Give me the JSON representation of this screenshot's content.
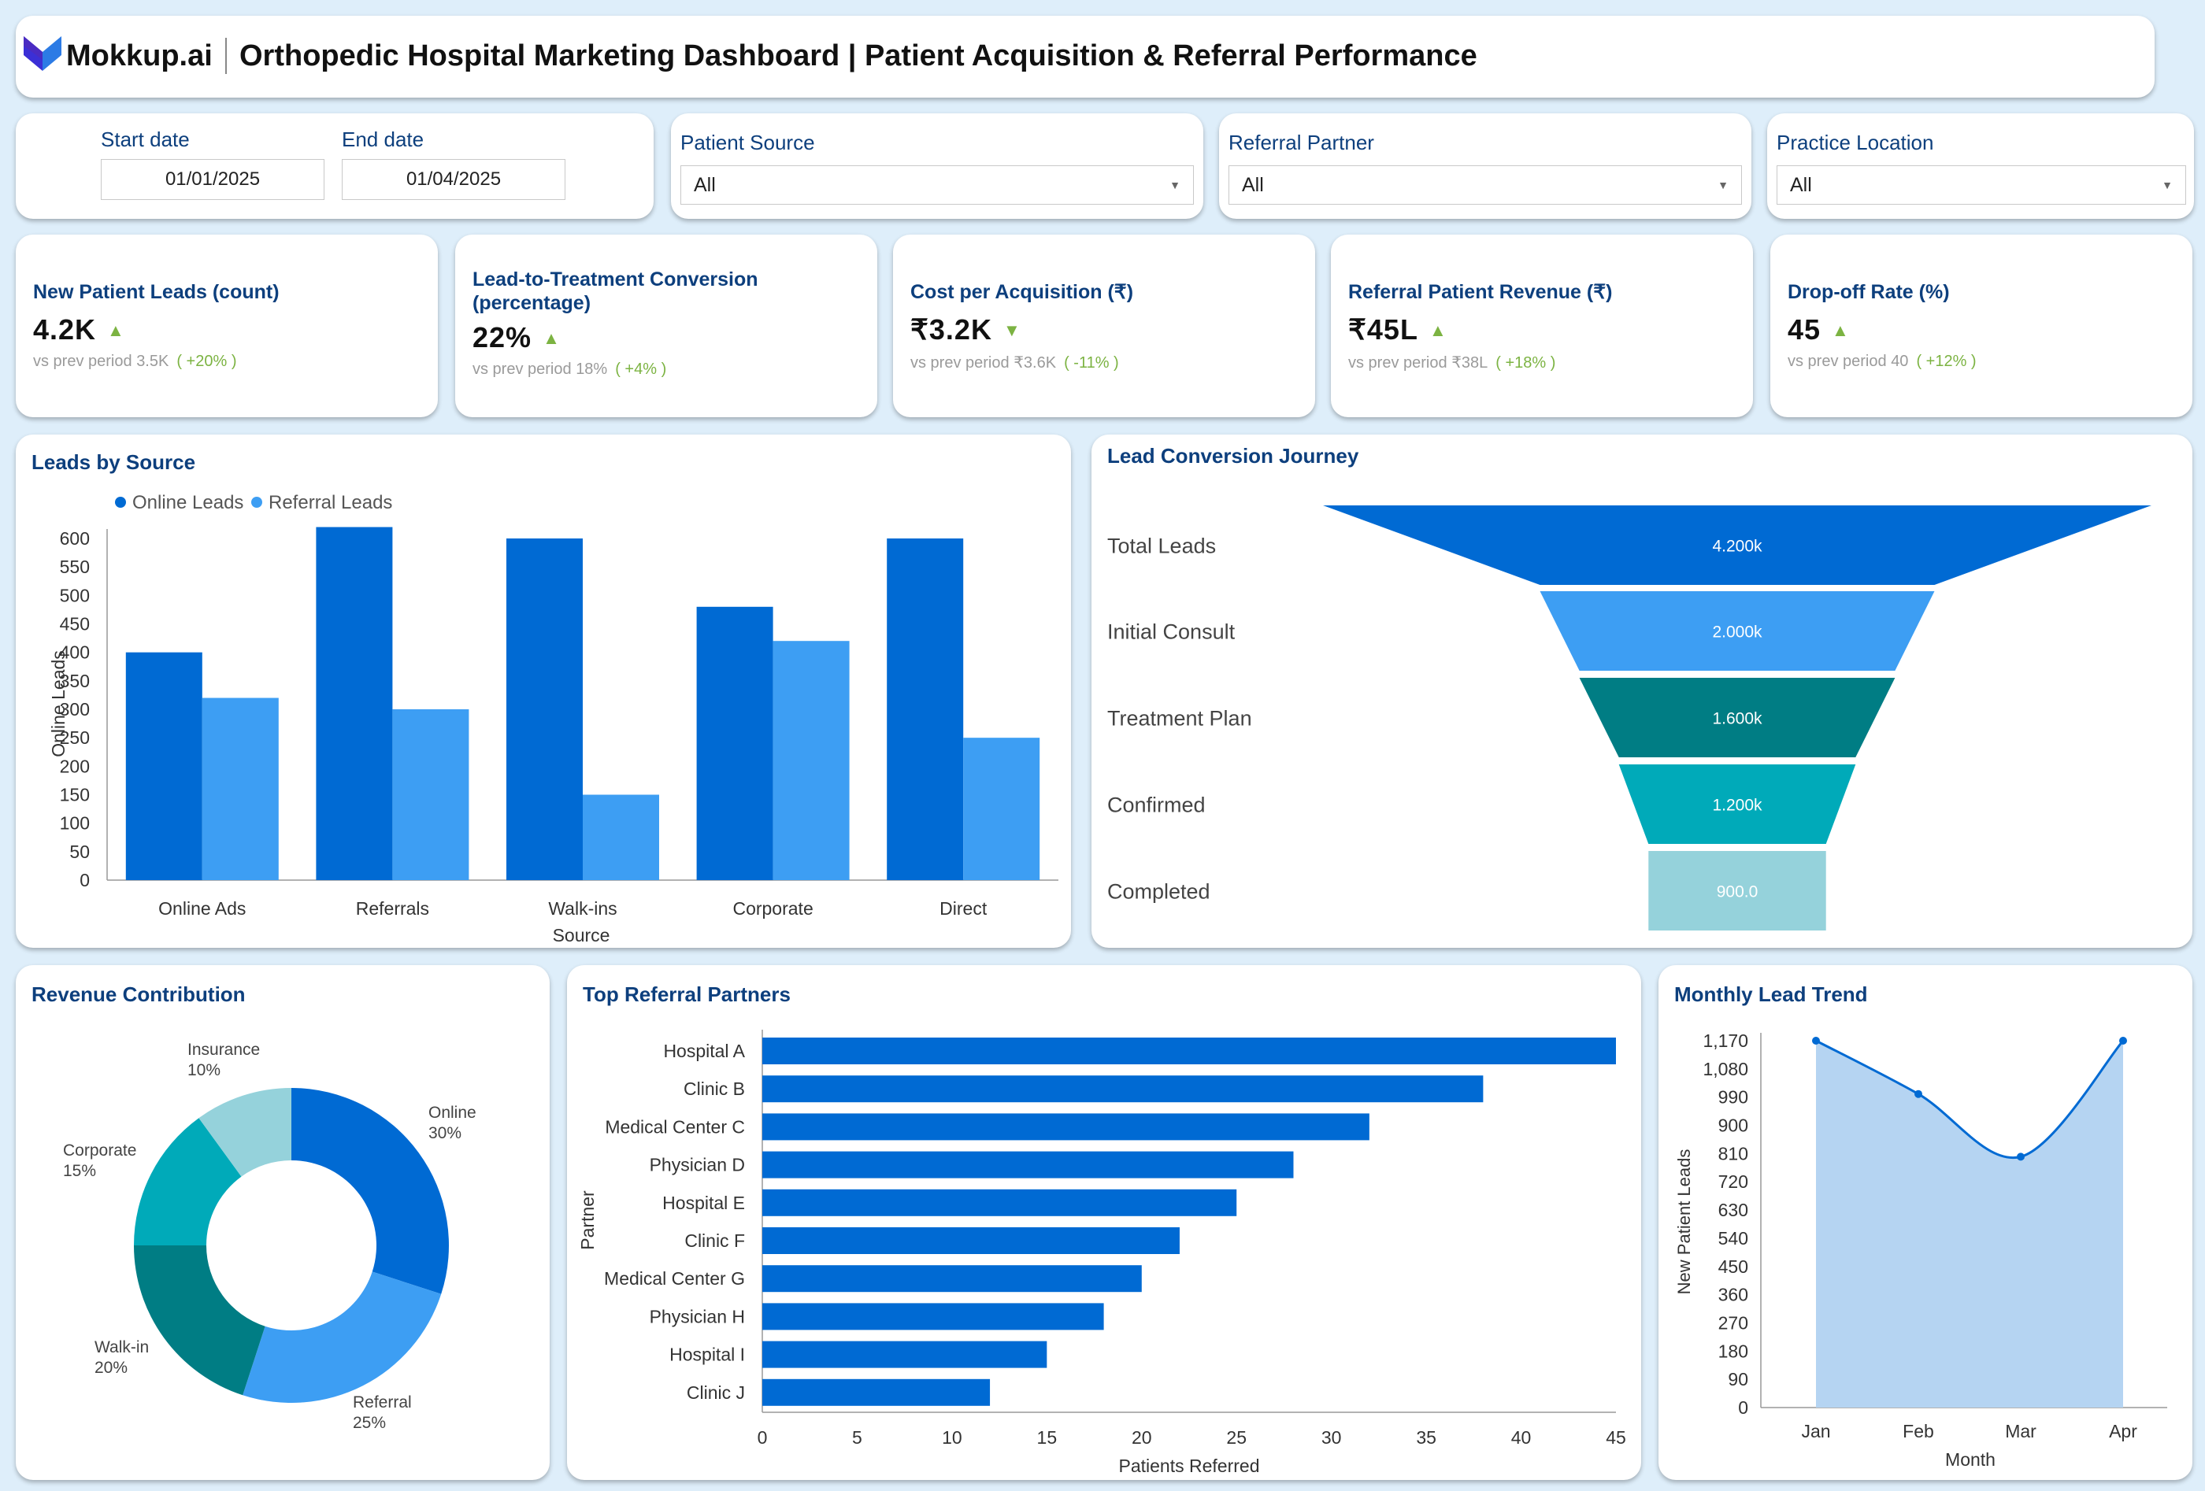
{
  "header": {
    "brand": "Mokkup.ai",
    "title": "Orthopedic Hospital Marketing Dashboard | Patient Acquisition & Referral Performance"
  },
  "filters": {
    "start_label": "Start date",
    "start_value": "01/01/2025",
    "end_label": "End date",
    "end_value": "01/04/2025",
    "selects": [
      {
        "label": "Patient Source",
        "value": "All"
      },
      {
        "label": "Referral Partner",
        "value": "All"
      },
      {
        "label": "Practice Location",
        "value": "All"
      }
    ]
  },
  "kpis": [
    {
      "title": "New Patient Leads (count)",
      "value": "4.2K",
      "trend": "up",
      "prev_label": "vs prev period",
      "prev": "3.5K",
      "change": "( +20% )"
    },
    {
      "title": "Lead-to-Treatment Conversion (percentage)",
      "value": "22%",
      "trend": "up",
      "prev_label": "vs prev period",
      "prev": "18%",
      "change": "( +4% )"
    },
    {
      "title": "Cost per Acquisition (₹)",
      "value": "₹3.2K",
      "trend": "down",
      "prev_label": "vs prev period",
      "prev": "₹3.6K",
      "change": "( -11% )"
    },
    {
      "title": "Referral Patient Revenue (₹)",
      "value": "₹45L",
      "trend": "up",
      "prev_label": "vs prev period",
      "prev": "₹38L",
      "change": "( +18% )"
    },
    {
      "title": "Drop-off Rate (%)",
      "value": "45",
      "trend": "up",
      "prev_label": "vs prev period",
      "prev": "40",
      "change": "( +12% )"
    }
  ],
  "colors": {
    "dark_blue": "#006ad3",
    "light_blue": "#3d9ef3",
    "teal": "#007d84",
    "cyan": "#00aab9",
    "pale_teal": "#95d2db",
    "area_fill": "#b5d4f2",
    "kpi_green": "#7cb342"
  },
  "chart_data": [
    {
      "id": "leads_by_source",
      "type": "bar",
      "title": "Leads by Source",
      "categories": [
        "Online Ads",
        "Referrals",
        "Walk-ins",
        "Corporate",
        "Direct"
      ],
      "series": [
        {
          "name": "Online Leads",
          "values": [
            400,
            620,
            600,
            480,
            600
          ]
        },
        {
          "name": "Referral Leads",
          "values": [
            320,
            300,
            150,
            420,
            250
          ]
        }
      ],
      "xlabel": "Source",
      "ylabel": "Online Leads",
      "ylim": [
        0,
        600
      ],
      "yticks": [
        "600",
        "550",
        "500",
        "450",
        "400",
        "350",
        "300",
        "250",
        "200",
        "150",
        "100",
        "50",
        "0"
      ],
      "legend": "top-left"
    },
    {
      "id": "lead_conversion_journey",
      "type": "funnel",
      "title": "Lead Conversion Journey",
      "stages": [
        "Total Leads",
        "Initial Consult",
        "Treatment Plan",
        "Confirmed",
        "Completed"
      ],
      "values": [
        4200,
        2000,
        1600,
        1200,
        900
      ],
      "value_labels": [
        "4.200k",
        "2.000k",
        "1.600k",
        "1.200k",
        "900.0"
      ]
    },
    {
      "id": "revenue_contribution",
      "type": "pie",
      "title": "Revenue Contribution",
      "labels": [
        "Online",
        "Referral",
        "Walk-in",
        "Corporate",
        "Insurance"
      ],
      "values": [
        30,
        25,
        20,
        15,
        10
      ],
      "pct_labels": [
        "30%",
        "25%",
        "20%",
        "15%",
        "10%"
      ],
      "donut": true
    },
    {
      "id": "top_referral_partners",
      "type": "bar",
      "orientation": "horizontal",
      "title": "Top Referral Partners",
      "categories": [
        "Hospital A",
        "Clinic B",
        "Medical Center C",
        "Physician D",
        "Hospital E",
        "Clinic F",
        "Medical Center G",
        "Physician H",
        "Hospital I",
        "Clinic J"
      ],
      "values": [
        45,
        38,
        32,
        28,
        25,
        22,
        20,
        18,
        15,
        12
      ],
      "xlabel": "Patients Referred",
      "ylabel": "Partner",
      "xlim": [
        0,
        45
      ],
      "xticks": [
        "0",
        "5",
        "10",
        "15",
        "20",
        "25",
        "30",
        "35",
        "40",
        "45"
      ]
    },
    {
      "id": "monthly_lead_trend",
      "type": "area",
      "title": "Monthly Lead Trend",
      "categories": [
        "Jan",
        "Feb",
        "Mar",
        "Apr"
      ],
      "values": [
        1170,
        1000,
        800,
        1170
      ],
      "xlabel": "Month",
      "ylabel": "New Patient Leads",
      "ylim": [
        0,
        1170
      ],
      "yticks": [
        "1,170",
        "1,080",
        "990",
        "900",
        "810",
        "720",
        "630",
        "540",
        "450",
        "360",
        "270",
        "180",
        "90",
        "0"
      ]
    }
  ]
}
